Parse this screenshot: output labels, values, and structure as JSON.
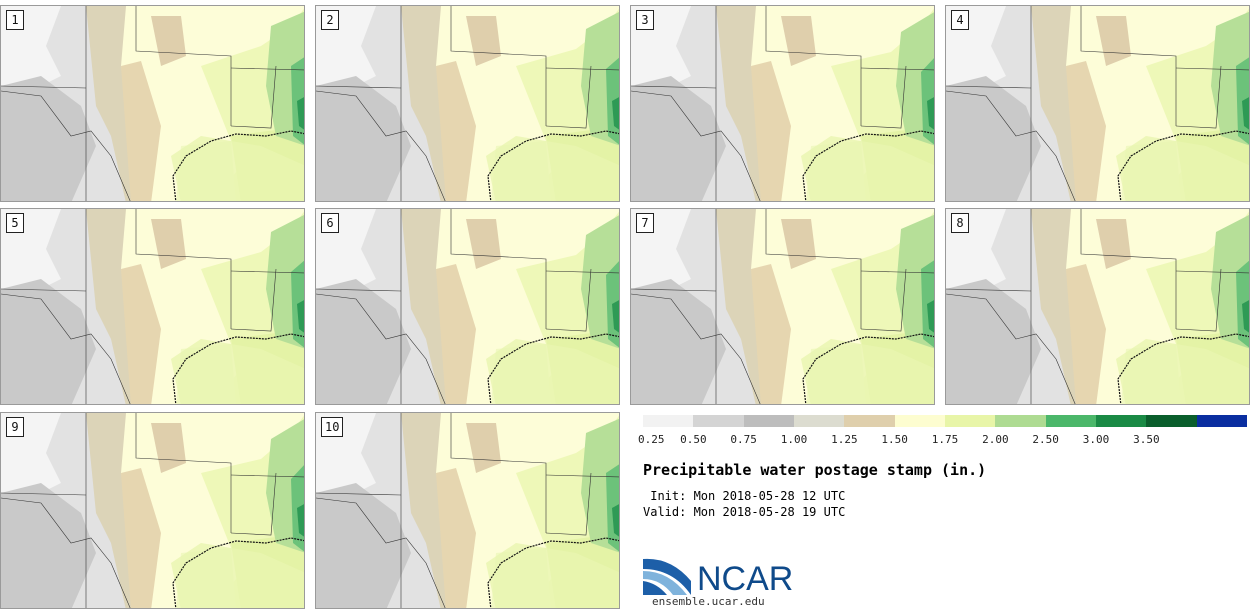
{
  "members": [
    {
      "label": "1"
    },
    {
      "label": "2"
    },
    {
      "label": "3"
    },
    {
      "label": "4"
    },
    {
      "label": "5"
    },
    {
      "label": "6"
    },
    {
      "label": "7"
    },
    {
      "label": "8"
    },
    {
      "label": "9"
    },
    {
      "label": "10"
    }
  ],
  "colorbar": {
    "ticks": [
      "0.25",
      "0.50",
      "0.75",
      "1.00",
      "1.25",
      "1.50",
      "1.75",
      "2.00",
      "2.50",
      "3.00",
      "3.50"
    ],
    "colors": [
      "#f2f2f2",
      "#d4d4d4",
      "#bdbdbd",
      "#dcdcd0",
      "#dfcfac",
      "#fdfdd0",
      "#e8f5a8",
      "#aedb92",
      "#4bb76a",
      "#1a8a45",
      "#0a5e2c",
      "#0a2ea0"
    ]
  },
  "title": "Precipitable water postage stamp (in.)",
  "init": " Init: Mon 2018-05-28 12 UTC",
  "valid": "Valid: Mon 2018-05-28 19 UTC",
  "logo": {
    "text": "NCAR",
    "colors": {
      "blue": "#1d5fa8",
      "lightblue": "#7fb3dc",
      "text": "#0f4a8a"
    }
  },
  "site": "ensemble.ucar.edu"
}
